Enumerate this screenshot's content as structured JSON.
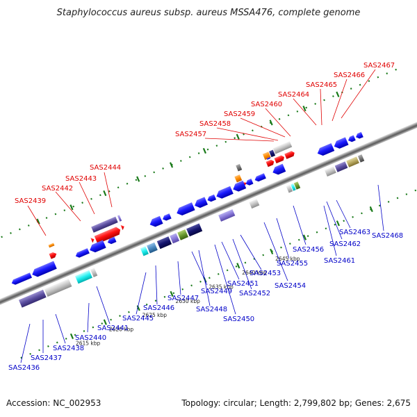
{
  "title": "Staphylococcus aureus subsp. aureus MSSA476, complete genome",
  "footer": {
    "accession": "Accession: NC_002953",
    "topology": "Topology: circular; Length: 2,799,802 bp; Genes: 2,675"
  },
  "kbp_labels": [
    "2615 kbp",
    "2620 kbp",
    "2625 kbp",
    "2630 kbp",
    "2635 kbp",
    "2640 kbp",
    "2645 kbp"
  ],
  "top_labels": [
    "SAS2439",
    "SAS2442",
    "SAS2443",
    "SAS2444",
    "SAS2457",
    "SAS2458",
    "SAS2459",
    "SAS2460",
    "SAS2464",
    "SAS2465",
    "SAS2466",
    "SAS2467"
  ],
  "bottom_labels": [
    "SAS2436",
    "SAS2437",
    "SAS2438",
    "SAS2440",
    "SAS2441",
    "SAS2445",
    "SAS2446",
    "SAS2447",
    "SAS2448",
    "SAS2449",
    "SAS2450",
    "SAS2451",
    "SAS2452",
    "SAS2453",
    "SAS2454",
    "SAS2455",
    "SAS2456",
    "SAS2461",
    "SAS2462",
    "SAS2463",
    "SAS2468"
  ],
  "colors": {
    "gene_blue": "#1a1aff",
    "gene_red": "#ff1010",
    "gene_orange": "#ff8c00",
    "label_red": "#e00000",
    "label_blue": "#0000c8",
    "tick_green": "#1a7a1a",
    "purple": "#6655aa",
    "cyan": "#22ffff",
    "gray": "#bbbbbb"
  }
}
